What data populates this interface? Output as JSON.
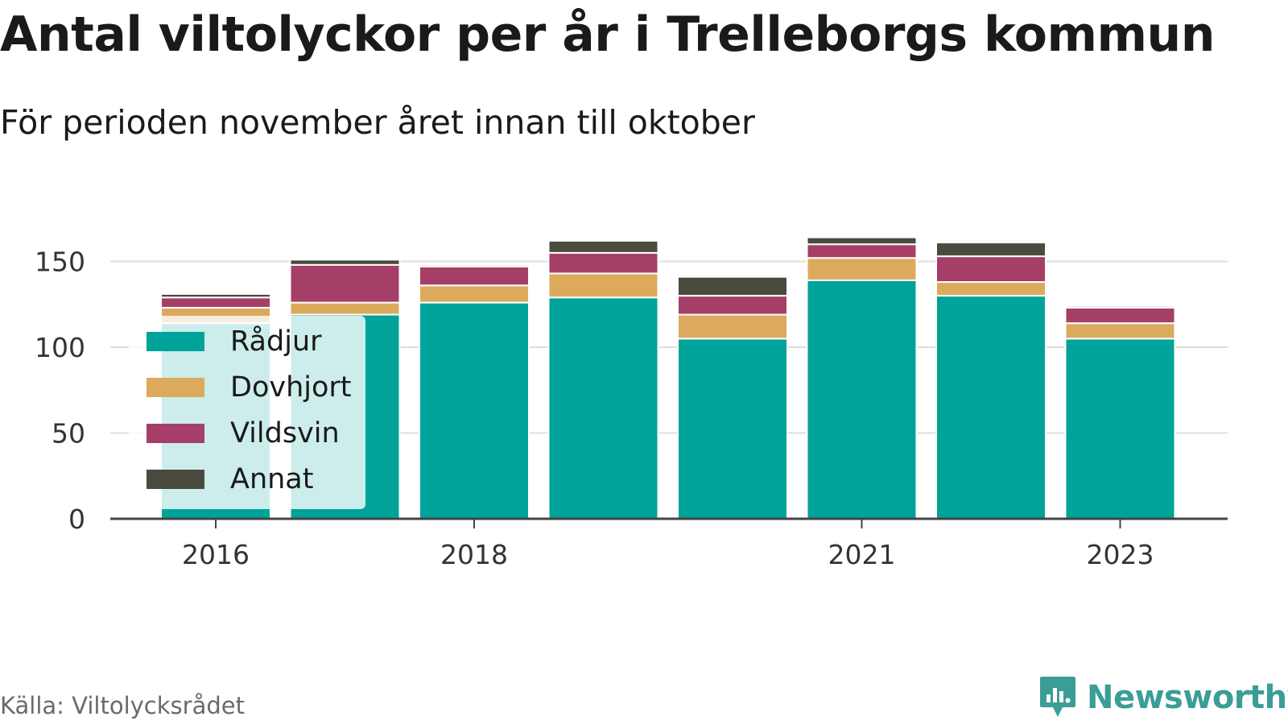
{
  "title": "Antal viltolyckor per år i Trelleborgs kommun",
  "subtitle": "För perioden november året innan till oktober",
  "source": "Källa: Viltolycksrådet",
  "brand": "Newsworthy",
  "colors": {
    "Rådjur": "#00a39a",
    "Dovhjort": "#dcaa5c",
    "Vildsvin": "#a53f68",
    "Annat": "#4a4a3e",
    "grid": "#dddddd",
    "axis": "#444444"
  },
  "chart_data": {
    "type": "bar",
    "stacked": true,
    "x": [
      2016,
      2017,
      2018,
      2019,
      2020,
      2021,
      2022,
      2023
    ],
    "x_tick_labels": [
      "2016",
      "2018",
      "2021",
      "2023"
    ],
    "y_ticks": [
      0,
      50,
      100,
      150
    ],
    "ylim": [
      0,
      165
    ],
    "grid": true,
    "legend_position": "left",
    "series": [
      {
        "name": "Rådjur",
        "values": [
          114,
          119,
          126,
          129,
          105,
          139,
          130,
          105
        ]
      },
      {
        "name": "Dovhjort",
        "values": [
          9,
          7,
          10,
          14,
          14,
          13,
          8,
          9
        ]
      },
      {
        "name": "Vildsvin",
        "values": [
          6,
          22,
          11,
          12,
          11,
          8,
          15,
          9
        ]
      },
      {
        "name": "Annat",
        "values": [
          2,
          3,
          1,
          7,
          11,
          4,
          8,
          1
        ]
      }
    ]
  }
}
